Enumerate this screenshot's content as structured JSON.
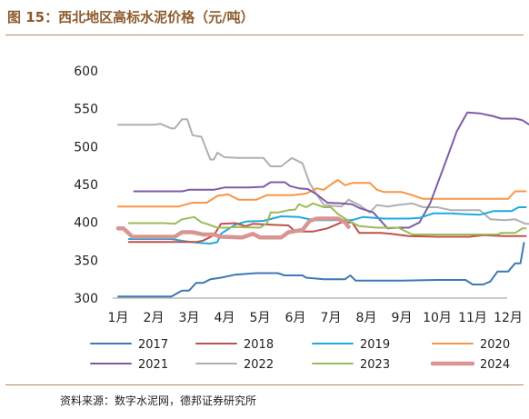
{
  "header": {
    "title": "图 15：西北地区高标水泥价格（元/吨）"
  },
  "footer": {
    "source": "资料来源：数字水泥网，德邦证券研究所"
  },
  "chart_data": {
    "type": "line",
    "title": "图 15：西北地区高标水泥价格（元/吨）",
    "xlabel": "",
    "ylabel": "",
    "ylim": [
      300,
      600
    ],
    "yticks": [
      300,
      350,
      400,
      450,
      500,
      550,
      600
    ],
    "xlim": [
      1,
      12.45
    ],
    "categories": [
      "1月",
      "2月",
      "3月",
      "4月",
      "5月",
      "6月",
      "7月",
      "8月",
      "9月",
      "10月",
      "11月",
      "12月"
    ],
    "grid": false,
    "legend_position": "bottom",
    "series": [
      {
        "name": "2017",
        "color": "#3f78b5",
        "width": 2,
        "points": [
          [
            1,
            302
          ],
          [
            2,
            302
          ],
          [
            2.5,
            302
          ],
          [
            2.8,
            310
          ],
          [
            3,
            310
          ],
          [
            3.2,
            320
          ],
          [
            3.4,
            320
          ],
          [
            3.6,
            325
          ],
          [
            3.9,
            327
          ],
          [
            4.3,
            331
          ],
          [
            4.9,
            333
          ],
          [
            5.5,
            333
          ],
          [
            5.7,
            330
          ],
          [
            6.2,
            330
          ],
          [
            6.3,
            327
          ],
          [
            6.8,
            325
          ],
          [
            7.3,
            325
          ],
          [
            7.4,
            325
          ],
          [
            7.55,
            330
          ],
          [
            7.7,
            323
          ],
          [
            8.2,
            323
          ],
          [
            9,
            323
          ],
          [
            10,
            324
          ],
          [
            10.8,
            324
          ],
          [
            11,
            318
          ],
          [
            11.3,
            318
          ],
          [
            11.5,
            322
          ],
          [
            11.7,
            335
          ],
          [
            12,
            335
          ],
          [
            12.2,
            346
          ],
          [
            12.35,
            346
          ],
          [
            12.45,
            373
          ]
        ]
      },
      {
        "name": "2018",
        "color": "#c0504d",
        "width": 2,
        "points": [
          [
            1.3,
            374
          ],
          [
            2.2,
            374
          ],
          [
            3.2,
            374
          ],
          [
            3.4,
            376
          ],
          [
            3.7,
            383
          ],
          [
            3.9,
            398
          ],
          [
            4.3,
            399
          ],
          [
            4.6,
            395
          ],
          [
            4.8,
            398
          ],
          [
            5.3,
            397
          ],
          [
            5.8,
            396
          ],
          [
            6,
            388
          ],
          [
            6.5,
            388
          ],
          [
            6.9,
            392
          ],
          [
            7.3,
            400
          ],
          [
            7.6,
            400
          ],
          [
            7.8,
            386
          ],
          [
            8.4,
            386
          ],
          [
            8.7,
            385
          ],
          [
            9.2,
            382
          ],
          [
            10,
            381
          ],
          [
            10.9,
            381
          ],
          [
            11.3,
            383
          ],
          [
            11.9,
            382
          ],
          [
            12.5,
            382
          ]
        ]
      },
      {
        "name": "2019",
        "color": "#1fa9e0",
        "width": 2,
        "points": [
          [
            1.3,
            378
          ],
          [
            2.5,
            378
          ],
          [
            2.9,
            375
          ],
          [
            3.3,
            373
          ],
          [
            3.6,
            372
          ],
          [
            3.8,
            374
          ],
          [
            3.9,
            385
          ],
          [
            4.3,
            397
          ],
          [
            4.6,
            401
          ],
          [
            5.1,
            402
          ],
          [
            5.6,
            408
          ],
          [
            6.1,
            407
          ],
          [
            6.3,
            405
          ],
          [
            6.6,
            403
          ],
          [
            7.6,
            403
          ],
          [
            7.9,
            407
          ],
          [
            8.5,
            405
          ],
          [
            9.2,
            405
          ],
          [
            9.5,
            406
          ],
          [
            9.9,
            412
          ],
          [
            10.4,
            412
          ],
          [
            10.7,
            411
          ],
          [
            11.2,
            410
          ],
          [
            11.6,
            415
          ],
          [
            12.1,
            415
          ],
          [
            12.3,
            420
          ],
          [
            12.5,
            420
          ]
        ]
      },
      {
        "name": "2020",
        "color": "#f79646",
        "width": 2,
        "points": [
          [
            1,
            421
          ],
          [
            2,
            421
          ],
          [
            2.7,
            421
          ],
          [
            3.1,
            426
          ],
          [
            3.5,
            426
          ],
          [
            3.8,
            435
          ],
          [
            4.1,
            437
          ],
          [
            4.4,
            430
          ],
          [
            4.9,
            430
          ],
          [
            5.2,
            436
          ],
          [
            5.9,
            436
          ],
          [
            6.3,
            438
          ],
          [
            6.6,
            445
          ],
          [
            6.8,
            443
          ],
          [
            7,
            450
          ],
          [
            7.2,
            456
          ],
          [
            7.4,
            449
          ],
          [
            7.6,
            452
          ],
          [
            8.1,
            452
          ],
          [
            8.3,
            443
          ],
          [
            8.5,
            440
          ],
          [
            9,
            440
          ],
          [
            9.3,
            436
          ],
          [
            9.6,
            431
          ],
          [
            10.3,
            431
          ],
          [
            11.5,
            431
          ],
          [
            12,
            431
          ],
          [
            12.2,
            441
          ],
          [
            12.5,
            441
          ]
        ]
      },
      {
        "name": "2021",
        "color": "#7f5ba6",
        "width": 2,
        "points": [
          [
            1.45,
            441
          ],
          [
            2.3,
            441
          ],
          [
            2.8,
            441
          ],
          [
            3,
            443
          ],
          [
            3.7,
            443
          ],
          [
            4,
            446
          ],
          [
            4.7,
            446
          ],
          [
            5.1,
            447
          ],
          [
            5.3,
            453
          ],
          [
            5.7,
            453
          ],
          [
            5.85,
            448
          ],
          [
            6.1,
            445
          ],
          [
            6.35,
            444
          ],
          [
            6.6,
            437
          ],
          [
            6.9,
            426
          ],
          [
            7.3,
            425
          ],
          [
            7.6,
            424
          ],
          [
            7.8,
            419
          ],
          [
            8.2,
            413
          ],
          [
            8.6,
            392
          ],
          [
            8.9,
            393
          ],
          [
            9.2,
            393
          ],
          [
            9.5,
            400
          ],
          [
            9.8,
            425
          ],
          [
            10.2,
            475
          ],
          [
            10.55,
            520
          ],
          [
            10.85,
            545
          ],
          [
            11.2,
            544
          ],
          [
            11.6,
            540
          ],
          [
            11.8,
            537
          ],
          [
            12.2,
            537
          ],
          [
            12.4,
            535
          ],
          [
            12.6,
            529
          ]
        ]
      },
      {
        "name": "2022",
        "color": "#b0b0b0",
        "width": 2,
        "points": [
          [
            1,
            529
          ],
          [
            1.5,
            529
          ],
          [
            2,
            529
          ],
          [
            2.2,
            530
          ],
          [
            2.5,
            524
          ],
          [
            2.6,
            524
          ],
          [
            2.8,
            536
          ],
          [
            2.95,
            536
          ],
          [
            3.1,
            515
          ],
          [
            3.35,
            513
          ],
          [
            3.6,
            483
          ],
          [
            3.7,
            483
          ],
          [
            3.8,
            492
          ],
          [
            4,
            486
          ],
          [
            4.4,
            485
          ],
          [
            5.1,
            485
          ],
          [
            5.3,
            474
          ],
          [
            5.6,
            474
          ],
          [
            5.9,
            485
          ],
          [
            6.2,
            478
          ],
          [
            6.4,
            452
          ],
          [
            6.6,
            437
          ],
          [
            6.8,
            423
          ],
          [
            7,
            422
          ],
          [
            7.3,
            421
          ],
          [
            7.5,
            430
          ],
          [
            7.8,
            423
          ],
          [
            8.1,
            413
          ],
          [
            8.3,
            423
          ],
          [
            8.6,
            421
          ],
          [
            8.9,
            423
          ],
          [
            9.3,
            425
          ],
          [
            9.6,
            420
          ],
          [
            10,
            420
          ],
          [
            10.4,
            416
          ],
          [
            11,
            416
          ],
          [
            11.2,
            416
          ],
          [
            11.5,
            404
          ],
          [
            11.9,
            403
          ],
          [
            12.2,
            404
          ],
          [
            12.5,
            398
          ],
          [
            12.7,
            398
          ]
        ]
      },
      {
        "name": "2023",
        "color": "#9bbb59",
        "width": 2,
        "points": [
          [
            1.3,
            399
          ],
          [
            2.3,
            399
          ],
          [
            2.6,
            398
          ],
          [
            2.8,
            404
          ],
          [
            3.15,
            407
          ],
          [
            3.35,
            400
          ],
          [
            3.5,
            398
          ],
          [
            3.8,
            393
          ],
          [
            4.1,
            393
          ],
          [
            4.3,
            394
          ],
          [
            5,
            393
          ],
          [
            5.2,
            399
          ],
          [
            5.3,
            413
          ],
          [
            5.5,
            413
          ],
          [
            5.8,
            416
          ],
          [
            6,
            417
          ],
          [
            6.1,
            424
          ],
          [
            6.3,
            420
          ],
          [
            6.5,
            425
          ],
          [
            6.8,
            420
          ],
          [
            7,
            420
          ],
          [
            7.2,
            411
          ],
          [
            7.5,
            402
          ],
          [
            7.8,
            395
          ],
          [
            8.3,
            393
          ],
          [
            8.9,
            393
          ],
          [
            9.3,
            384
          ],
          [
            10.4,
            384
          ],
          [
            11.7,
            384
          ],
          [
            11.8,
            386
          ],
          [
            12,
            386
          ],
          [
            12.2,
            386
          ],
          [
            12.4,
            392
          ],
          [
            12.5,
            392
          ]
        ]
      },
      {
        "name": "2024",
        "color": "#d99594",
        "width": 4.5,
        "points": [
          [
            1,
            392
          ],
          [
            1.15,
            392
          ],
          [
            1.4,
            381
          ],
          [
            2.3,
            381
          ],
          [
            2.6,
            381
          ],
          [
            2.8,
            387
          ],
          [
            3.1,
            387
          ],
          [
            3.4,
            384
          ],
          [
            3.7,
            384
          ],
          [
            3.9,
            381
          ],
          [
            4.5,
            380
          ],
          [
            4.8,
            385
          ],
          [
            5,
            380
          ],
          [
            5.6,
            380
          ],
          [
            5.8,
            387
          ],
          [
            6.2,
            390
          ],
          [
            6.4,
            402
          ],
          [
            6.6,
            405
          ],
          [
            7.2,
            405
          ],
          [
            7.4,
            400
          ],
          [
            7.5,
            394
          ]
        ]
      }
    ]
  }
}
